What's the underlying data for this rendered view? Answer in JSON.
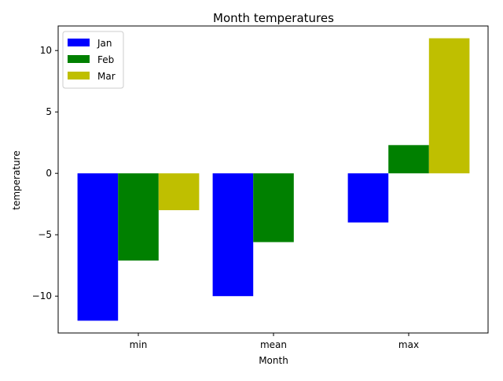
{
  "chart_data": {
    "type": "bar",
    "title": "Month temperatures",
    "xlabel": "Month",
    "ylabel": "temperature",
    "categories": [
      "min",
      "mean",
      "max"
    ],
    "series": [
      {
        "name": "Jan",
        "color": "#0000ff",
        "values": [
          -12,
          -10,
          -4
        ]
      },
      {
        "name": "Feb",
        "color": "#008000",
        "values": [
          -7.1,
          -5.6,
          2.3
        ]
      },
      {
        "name": "Mar",
        "color": "#bfbf00",
        "values": [
          -3,
          0,
          11
        ]
      }
    ],
    "ylim": [
      -13,
      12
    ],
    "yticks": [
      -10,
      -5,
      0,
      5,
      10
    ],
    "ytick_labels": [
      "−10",
      "−5",
      "0",
      "5",
      "10"
    ],
    "grid": false,
    "legend_position": "top-left"
  }
}
